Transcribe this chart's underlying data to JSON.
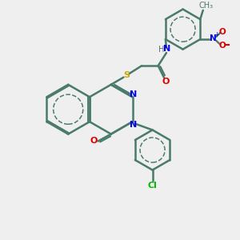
{
  "bg_color": "#efefef",
  "atom_colors": {
    "C": "#4a7a6a",
    "N": "#0000ee",
    "O": "#dd0000",
    "S": "#ccaa00",
    "Cl": "#00bb00",
    "H": "#607070"
  },
  "bond_color": "#4a7a6a",
  "bond_width": 1.8,
  "figsize": [
    3.0,
    3.0
  ],
  "dpi": 100
}
